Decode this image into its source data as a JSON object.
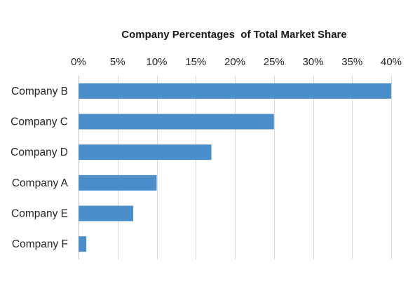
{
  "chart_data": {
    "type": "bar",
    "orientation": "horizontal",
    "title": "Company Percentages  of Total Market Share",
    "xlabel": "",
    "ylabel": "",
    "categories": [
      "Company B",
      "Company C",
      "Company D",
      "Company A",
      "Company E",
      "Company F"
    ],
    "values": [
      40,
      25,
      17,
      10,
      7,
      1
    ],
    "x_ticks": [
      "0%",
      "5%",
      "10%",
      "15%",
      "20%",
      "25%",
      "30%",
      "35%",
      "40%"
    ],
    "x_tick_values": [
      0,
      5,
      10,
      15,
      20,
      25,
      30,
      35,
      40
    ],
    "xlim": [
      0,
      40
    ],
    "x_axis_position": "top",
    "grid": true,
    "legend": "none",
    "bar_color": "#4a8fcc",
    "grid_color": "#d9d9d9"
  }
}
